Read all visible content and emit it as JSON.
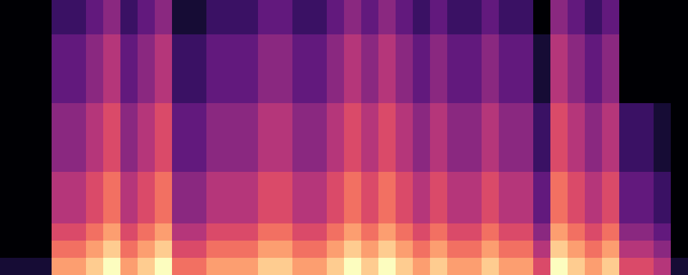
{
  "chart_data": {
    "type": "heatmap",
    "tick_labels": false,
    "color_range": [
      0,
      10
    ],
    "cells": [
      [
        0,
        0,
        0,
        2,
        2,
        3,
        4,
        2,
        3,
        4,
        1,
        1,
        2,
        2,
        2,
        3,
        3,
        2,
        2,
        3,
        4,
        3,
        4,
        3,
        2,
        3,
        2,
        2,
        3,
        2,
        2,
        0,
        4,
        3,
        2,
        3,
        0,
        0,
        0,
        0
      ],
      [
        0,
        0,
        0,
        2,
        2,
        3,
        4,
        2,
        3,
        4,
        1,
        1,
        2,
        2,
        2,
        3,
        3,
        2,
        2,
        3,
        4,
        3,
        4,
        3,
        2,
        3,
        2,
        2,
        3,
        2,
        2,
        0,
        4,
        3,
        2,
        3,
        0,
        0,
        0,
        0
      ],
      [
        0,
        0,
        0,
        3,
        3,
        4,
        5,
        3,
        4,
        5,
        2,
        2,
        3,
        3,
        3,
        4,
        4,
        3,
        3,
        4,
        5,
        4,
        5,
        4,
        3,
        4,
        3,
        3,
        4,
        3,
        3,
        1,
        5,
        4,
        3,
        4,
        0,
        0,
        0,
        0
      ],
      [
        0,
        0,
        0,
        3,
        3,
        4,
        5,
        3,
        4,
        5,
        2,
        2,
        3,
        3,
        3,
        4,
        4,
        3,
        3,
        4,
        5,
        4,
        5,
        4,
        3,
        4,
        3,
        3,
        4,
        3,
        3,
        1,
        5,
        4,
        3,
        4,
        0,
        0,
        0,
        0
      ],
      [
        0,
        0,
        0,
        3,
        3,
        4,
        5,
        3,
        4,
        5,
        2,
        2,
        3,
        3,
        3,
        4,
        4,
        3,
        3,
        4,
        5,
        4,
        5,
        4,
        3,
        4,
        3,
        3,
        4,
        3,
        3,
        1,
        5,
        4,
        3,
        4,
        0,
        0,
        0,
        0
      ],
      [
        0,
        0,
        0,
        3,
        3,
        4,
        5,
        3,
        4,
        5,
        2,
        2,
        3,
        3,
        3,
        4,
        4,
        3,
        3,
        4,
        5,
        4,
        5,
        4,
        3,
        4,
        3,
        3,
        4,
        3,
        3,
        1,
        5,
        4,
        3,
        4,
        0,
        0,
        0,
        0
      ],
      [
        0,
        0,
        0,
        4,
        4,
        5,
        6,
        4,
        5,
        6,
        3,
        3,
        4,
        4,
        4,
        5,
        5,
        4,
        4,
        5,
        6,
        5,
        6,
        5,
        4,
        5,
        4,
        4,
        5,
        4,
        4,
        2,
        6,
        5,
        4,
        5,
        2,
        2,
        1,
        0
      ],
      [
        0,
        0,
        0,
        4,
        4,
        5,
        6,
        4,
        5,
        6,
        3,
        3,
        4,
        4,
        4,
        5,
        5,
        4,
        4,
        5,
        6,
        5,
        6,
        5,
        4,
        5,
        4,
        4,
        5,
        4,
        4,
        2,
        6,
        5,
        4,
        5,
        2,
        2,
        1,
        0
      ],
      [
        0,
        0,
        0,
        4,
        4,
        5,
        6,
        4,
        5,
        6,
        3,
        3,
        4,
        4,
        4,
        5,
        5,
        4,
        4,
        5,
        6,
        5,
        6,
        5,
        4,
        5,
        4,
        4,
        5,
        4,
        4,
        2,
        6,
        5,
        4,
        5,
        2,
        2,
        1,
        0
      ],
      [
        0,
        0,
        0,
        4,
        4,
        5,
        6,
        4,
        5,
        6,
        3,
        3,
        4,
        4,
        4,
        5,
        5,
        4,
        4,
        5,
        6,
        5,
        6,
        5,
        4,
        5,
        4,
        4,
        5,
        4,
        4,
        2,
        6,
        5,
        4,
        5,
        2,
        2,
        1,
        0
      ],
      [
        0,
        0,
        0,
        5,
        5,
        6,
        7,
        5,
        6,
        7,
        4,
        4,
        5,
        5,
        5,
        6,
        6,
        5,
        5,
        6,
        7,
        6,
        7,
        6,
        5,
        6,
        5,
        5,
        6,
        5,
        5,
        3,
        7,
        6,
        5,
        6,
        3,
        3,
        2,
        0
      ],
      [
        0,
        0,
        0,
        5,
        5,
        6,
        7,
        5,
        6,
        7,
        4,
        4,
        5,
        5,
        5,
        6,
        6,
        5,
        5,
        6,
        7,
        6,
        7,
        6,
        5,
        6,
        5,
        5,
        6,
        5,
        5,
        3,
        7,
        6,
        5,
        6,
        3,
        3,
        2,
        0
      ],
      [
        0,
        0,
        0,
        5,
        5,
        6,
        7,
        5,
        6,
        7,
        4,
        4,
        5,
        5,
        5,
        6,
        6,
        5,
        5,
        6,
        7,
        6,
        7,
        6,
        5,
        6,
        5,
        5,
        6,
        5,
        5,
        3,
        7,
        6,
        5,
        6,
        3,
        3,
        2,
        0
      ],
      [
        0,
        0,
        0,
        6,
        6,
        7,
        8,
        6,
        7,
        8,
        5,
        5,
        6,
        6,
        6,
        7,
        7,
        6,
        6,
        7,
        8,
        7,
        8,
        7,
        6,
        7,
        6,
        6,
        7,
        6,
        6,
        4,
        8,
        7,
        6,
        7,
        4,
        4,
        3,
        0
      ],
      [
        0,
        0,
        0,
        7,
        7,
        8,
        9,
        7,
        8,
        9,
        6,
        6,
        7,
        7,
        7,
        8,
        8,
        7,
        7,
        8,
        9,
        8,
        9,
        8,
        7,
        8,
        7,
        7,
        8,
        7,
        7,
        5,
        9,
        8,
        7,
        8,
        5,
        5,
        4,
        0
      ],
      [
        1,
        1,
        1,
        8,
        8,
        9,
        10,
        8,
        9,
        10,
        7,
        7,
        8,
        8,
        8,
        9,
        9,
        8,
        8,
        9,
        10,
        9,
        10,
        9,
        8,
        9,
        8,
        8,
        9,
        8,
        8,
        6,
        10,
        9,
        8,
        9,
        6,
        6,
        5,
        1
      ]
    ]
  }
}
